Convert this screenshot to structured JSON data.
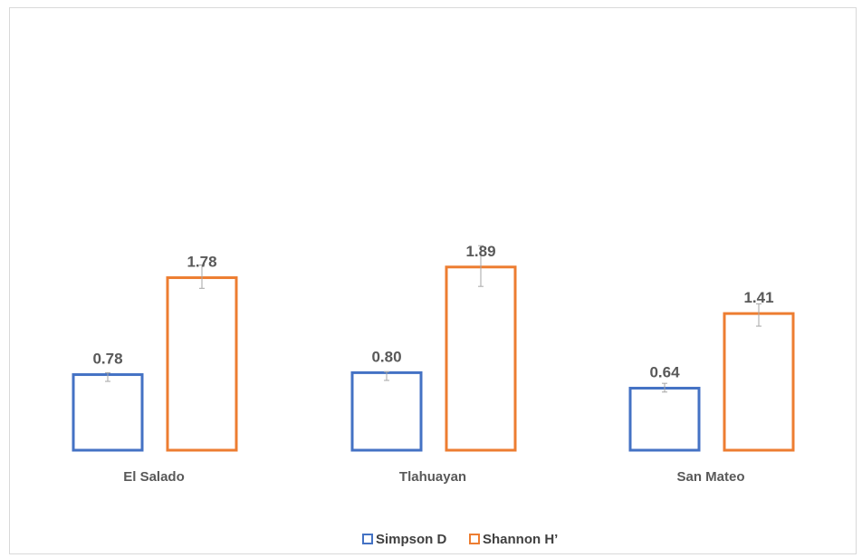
{
  "chart_data": {
    "type": "bar",
    "title": "",
    "xlabel": "",
    "ylabel": "",
    "categories": [
      "El Salado",
      "Tlahuayan",
      "San Mateo"
    ],
    "series": [
      {
        "name": "Simpson D",
        "color": "#4472c4",
        "values": [
          0.78,
          0.8,
          0.64
        ],
        "value_labels": [
          "0.78",
          "0.80",
          "0.64"
        ],
        "error_low": [
          0.71,
          0.72,
          0.6
        ],
        "error_high": [
          0.8,
          0.81,
          0.69
        ]
      },
      {
        "name": "Shannon H’",
        "color": "#ed7d31",
        "values": [
          1.78,
          1.89,
          1.41
        ],
        "value_labels": [
          "1.78",
          "1.89",
          "1.41"
        ],
        "error_low": [
          1.67,
          1.69,
          1.28
        ],
        "error_high": [
          1.91,
          2.11,
          1.51
        ]
      }
    ],
    "fill": "none",
    "legend": "bottom",
    "grid": false,
    "error_bar_color": "#a6a6a6"
  }
}
